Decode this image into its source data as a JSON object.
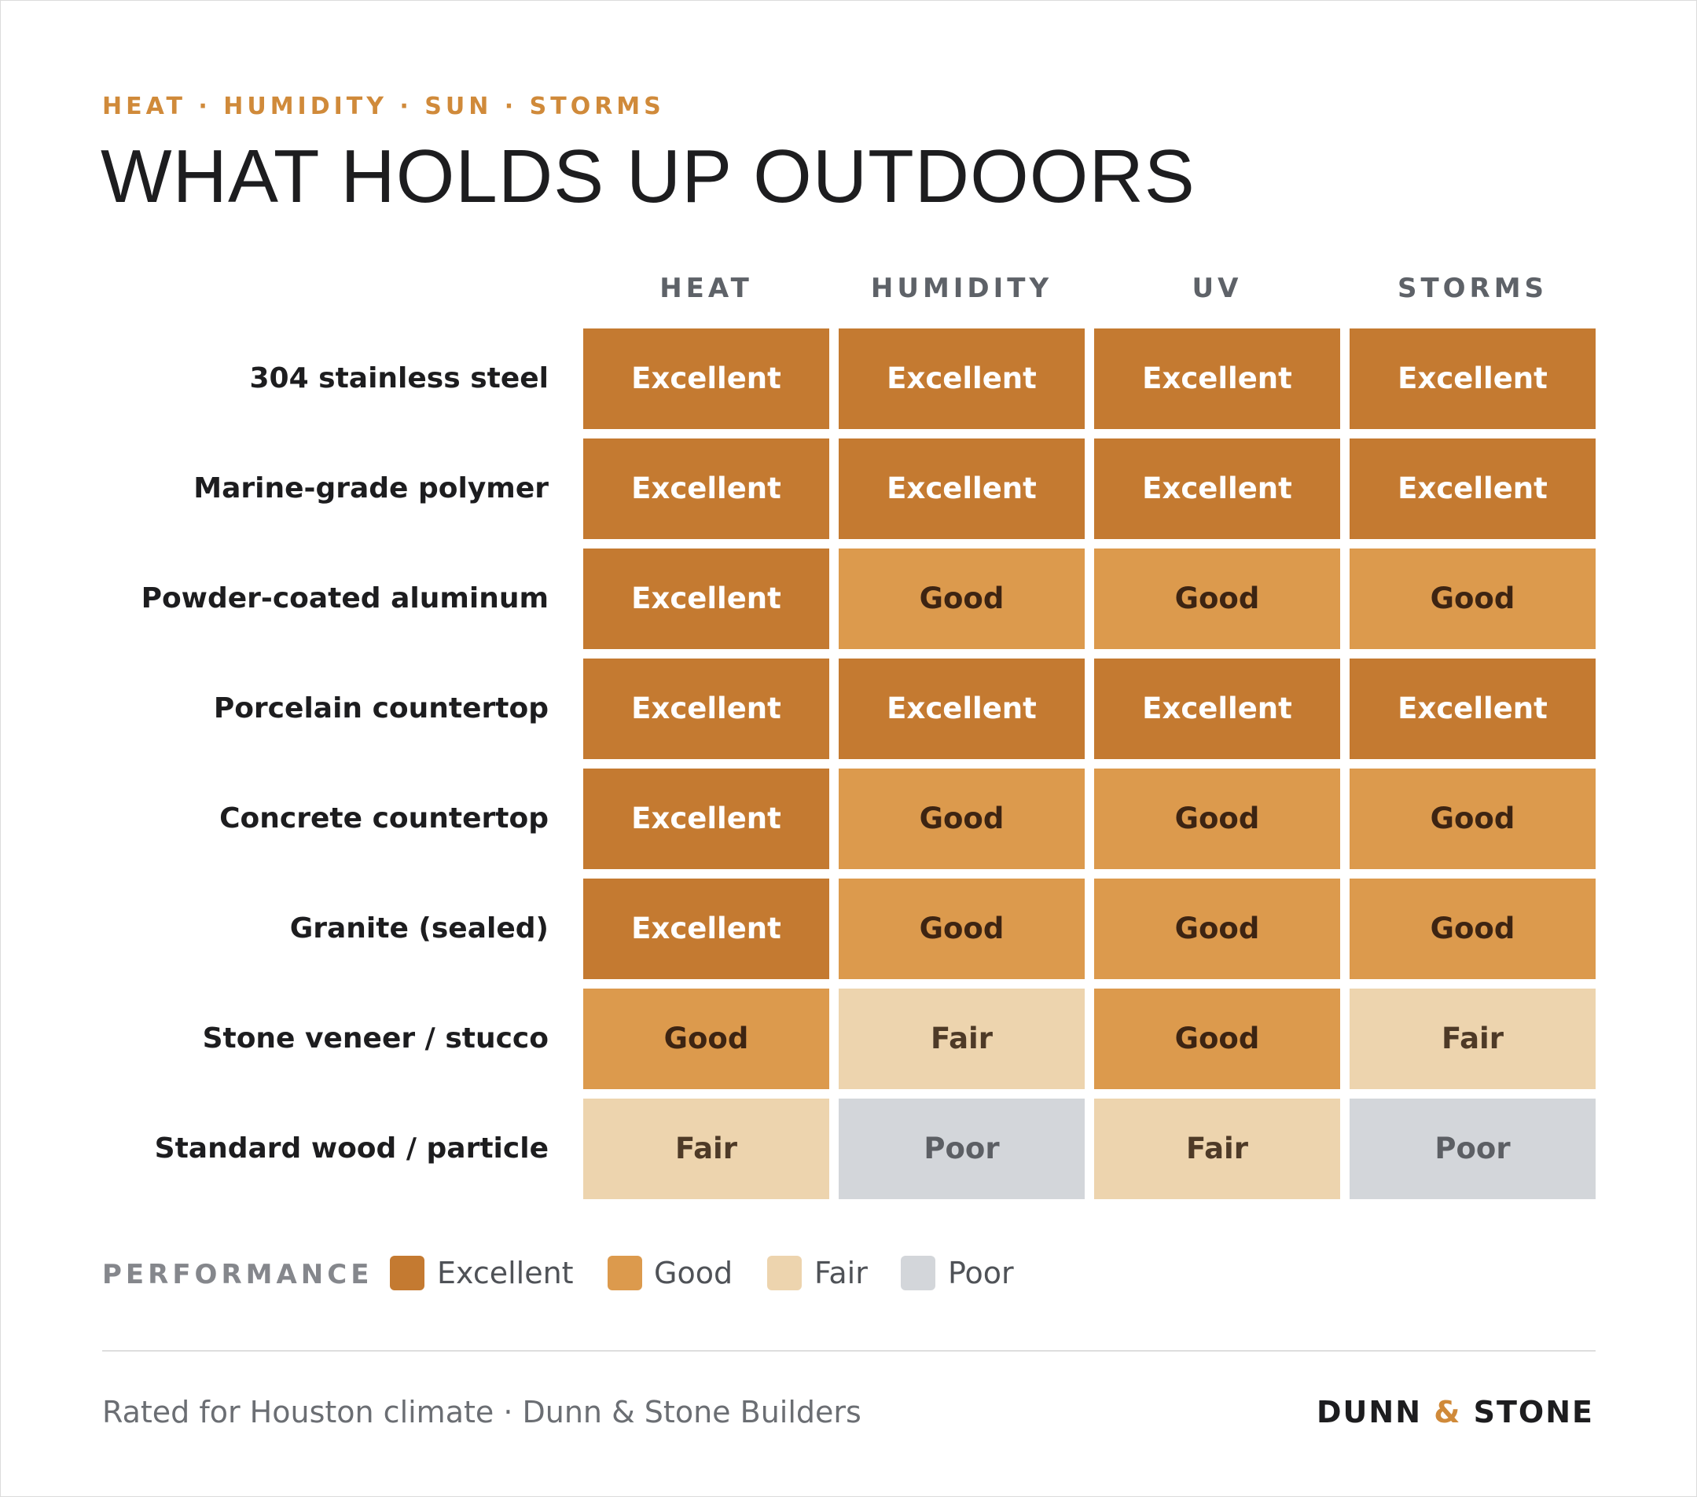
{
  "eyebrow": "HEAT · HUMIDITY · SUN · STORMS",
  "title": "WHAT HOLDS UP OUTDOORS",
  "colors": {
    "Excellent": {
      "bg": "#c47a31",
      "fg": "#ffffff"
    },
    "Good": {
      "bg": "#dc9a4d",
      "fg": "#3d2412"
    },
    "Fair": {
      "bg": "#edd4ae",
      "fg": "#4e3a27"
    },
    "Poor": {
      "bg": "#d3d6da",
      "fg": "#5c5f64"
    },
    "accent": "#d08a3a"
  },
  "chart_data": {
    "type": "table",
    "columns": [
      "HEAT",
      "HUMIDITY",
      "UV",
      "STORMS"
    ],
    "rows": [
      {
        "label": "304 stainless steel",
        "values": [
          "Excellent",
          "Excellent",
          "Excellent",
          "Excellent"
        ]
      },
      {
        "label": "Marine-grade polymer",
        "values": [
          "Excellent",
          "Excellent",
          "Excellent",
          "Excellent"
        ]
      },
      {
        "label": "Powder-coated aluminum",
        "values": [
          "Excellent",
          "Good",
          "Good",
          "Good"
        ]
      },
      {
        "label": "Porcelain countertop",
        "values": [
          "Excellent",
          "Excellent",
          "Excellent",
          "Excellent"
        ]
      },
      {
        "label": "Concrete countertop",
        "values": [
          "Excellent",
          "Good",
          "Good",
          "Good"
        ]
      },
      {
        "label": "Granite (sealed)",
        "values": [
          "Excellent",
          "Good",
          "Good",
          "Good"
        ]
      },
      {
        "label": "Stone veneer / stucco",
        "values": [
          "Good",
          "Fair",
          "Good",
          "Fair"
        ]
      },
      {
        "label": "Standard wood / particle",
        "values": [
          "Fair",
          "Poor",
          "Fair",
          "Poor"
        ]
      }
    ],
    "legend": {
      "title": "PERFORMANCE",
      "items": [
        "Excellent",
        "Good",
        "Fair",
        "Poor"
      ]
    }
  },
  "footer": {
    "note": "Rated for Houston climate · Dunn & Stone Builders",
    "brand_left": "DUNN",
    "brand_amp": "&",
    "brand_right": "STONE"
  }
}
